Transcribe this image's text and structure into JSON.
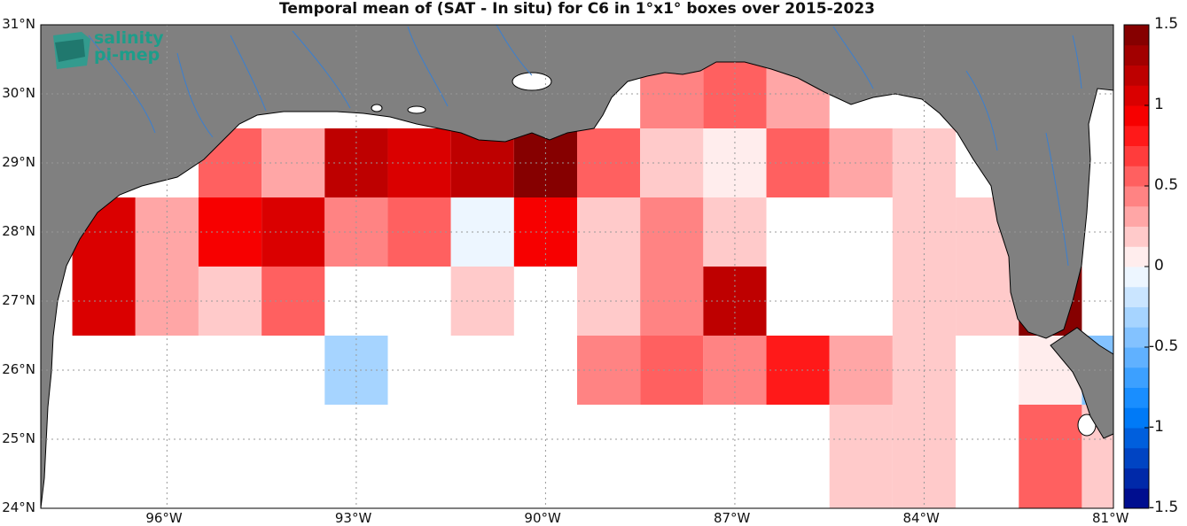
{
  "title": "Temporal mean of (SAT - In situ) for C6 in 1°x1° boxes over 2015-2023",
  "logo": {
    "line1": "salinity",
    "line2": "pi-mep"
  },
  "lat_labels": [
    "24°N",
    "25°N",
    "26°N",
    "27°N",
    "28°N",
    "29°N",
    "30°N",
    "31°N"
  ],
  "lon_labels": [
    "96°W",
    "93°W",
    "90°W",
    "87°W",
    "84°W",
    "81°W"
  ],
  "colorbar": {
    "min": -1.5,
    "max": 1.5,
    "tick_labels": [
      "1.5",
      "1",
      "0.5",
      "0",
      "-0.5",
      "-1",
      "-1.5"
    ],
    "tick_values": [
      1.5,
      1,
      0.5,
      0,
      -0.5,
      -1,
      -1.5
    ]
  },
  "colors": {
    "land": "#808080",
    "ocean": "#ffffff",
    "river": "#3a7fd0",
    "coast": "#000000"
  },
  "chart_data": {
    "type": "heatmap",
    "title": "Temporal mean of (SAT - In situ) for C6 in 1°x1° boxes over 2015-2023",
    "lon_range": [
      -98,
      -81
    ],
    "lat_range": [
      24,
      31
    ],
    "cell_size_deg": 1,
    "cells": [
      {
        "lon": -95,
        "lat": 29,
        "value": 0.6
      },
      {
        "lon": -94,
        "lat": 29,
        "value": 0.3
      },
      {
        "lon": -93,
        "lat": 29,
        "value": 1.2
      },
      {
        "lon": -92,
        "lat": 29,
        "value": 1.0
      },
      {
        "lon": -91,
        "lat": 29,
        "value": 1.2
      },
      {
        "lon": -90,
        "lat": 29,
        "value": 1.45
      },
      {
        "lon": -89,
        "lat": 29,
        "value": 0.6
      },
      {
        "lon": -88,
        "lat": 29,
        "value": 0.15
      },
      {
        "lon": -87,
        "lat": 29,
        "value": 0.0
      },
      {
        "lon": -86,
        "lat": 29,
        "value": 0.6
      },
      {
        "lon": -85,
        "lat": 29,
        "value": 0.3
      },
      {
        "lon": -84,
        "lat": 29,
        "value": 0.15
      },
      {
        "lon": -88,
        "lat": 30,
        "value": 0.4
      },
      {
        "lon": -87,
        "lat": 30,
        "value": 0.6
      },
      {
        "lon": -86,
        "lat": 30,
        "value": 0.25
      },
      {
        "lon": -97,
        "lat": 28,
        "value": 1.0
      },
      {
        "lon": -96,
        "lat": 28,
        "value": 0.3
      },
      {
        "lon": -95,
        "lat": 28,
        "value": 0.9
      },
      {
        "lon": -94,
        "lat": 28,
        "value": 1.1
      },
      {
        "lon": -93,
        "lat": 28,
        "value": 0.4
      },
      {
        "lon": -92,
        "lat": 28,
        "value": 0.5
      },
      {
        "lon": -91,
        "lat": 28,
        "value": -0.1
      },
      {
        "lon": -90,
        "lat": 28,
        "value": 0.9
      },
      {
        "lon": -89,
        "lat": 28,
        "value": 0.15
      },
      {
        "lon": -88,
        "lat": 28,
        "value": 0.4
      },
      {
        "lon": -87,
        "lat": 28,
        "value": 0.15
      },
      {
        "lon": -84,
        "lat": 28,
        "value": 0.15
      },
      {
        "lon": -83,
        "lat": 28,
        "value": 0.15
      },
      {
        "lon": -97,
        "lat": 27,
        "value": 1.1
      },
      {
        "lon": -96,
        "lat": 27,
        "value": 0.3
      },
      {
        "lon": -95,
        "lat": 27,
        "value": 0.15
      },
      {
        "lon": -94,
        "lat": 27,
        "value": 0.55
      },
      {
        "lon": -91,
        "lat": 27,
        "value": 0.15
      },
      {
        "lon": -89,
        "lat": 27,
        "value": 0.15
      },
      {
        "lon": -88,
        "lat": 27,
        "value": 0.4
      },
      {
        "lon": -87,
        "lat": 27,
        "value": 1.2
      },
      {
        "lon": -84,
        "lat": 27,
        "value": 0.15
      },
      {
        "lon": -83,
        "lat": 27,
        "value": 0.15
      },
      {
        "lon": -82,
        "lat": 27,
        "value": 1.4
      },
      {
        "lon": -93,
        "lat": 26,
        "value": -0.3
      },
      {
        "lon": -89,
        "lat": 26,
        "value": 0.4
      },
      {
        "lon": -88,
        "lat": 26,
        "value": 0.5
      },
      {
        "lon": -87,
        "lat": 26,
        "value": 0.4
      },
      {
        "lon": -86,
        "lat": 26,
        "value": 0.85
      },
      {
        "lon": -85,
        "lat": 26,
        "value": 0.25
      },
      {
        "lon": -84,
        "lat": 26,
        "value": 0.15
      },
      {
        "lon": -82,
        "lat": 26,
        "value": 0.0
      },
      {
        "lon": -81,
        "lat": 26,
        "value": -0.5
      },
      {
        "lon": -85,
        "lat": 25,
        "value": 0.15
      },
      {
        "lon": -84,
        "lat": 25,
        "value": 0.15
      },
      {
        "lon": -82,
        "lat": 25,
        "value": 0.55
      },
      {
        "lon": -81,
        "lat": 25,
        "value": 0.15
      },
      {
        "lon": -85,
        "lat": 24,
        "value": 0.15
      },
      {
        "lon": -84,
        "lat": 24,
        "value": 0.15
      },
      {
        "lon": -82,
        "lat": 24,
        "value": 0.55
      },
      {
        "lon": -81,
        "lat": 24,
        "value": 0.15
      }
    ]
  }
}
